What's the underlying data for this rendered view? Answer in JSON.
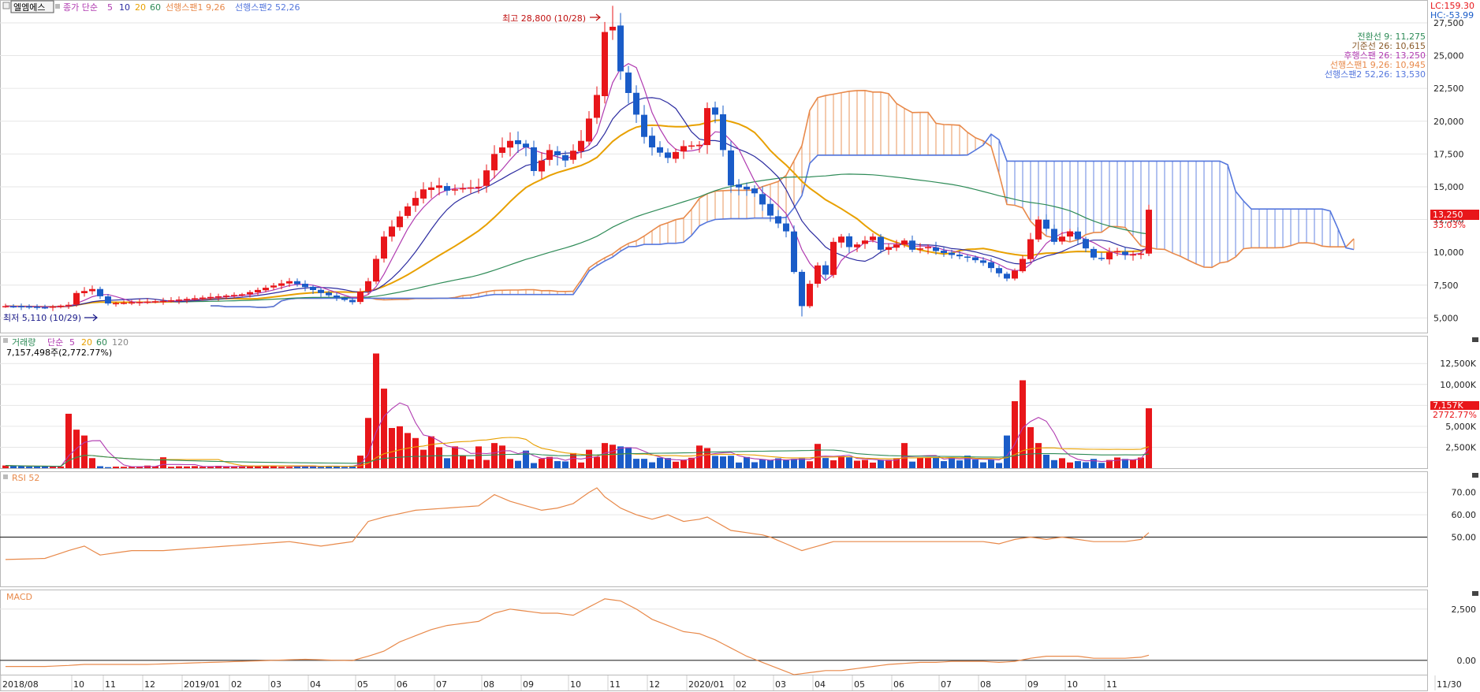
{
  "header": {
    "stock_name": "엘엠에스",
    "price_ma_label": "종가 단순",
    "price_ma_periods": [
      "5",
      "10",
      "20",
      "60"
    ],
    "span1_label": "선행스팬1 9,26",
    "span2_label": "선행스팬2 52,26",
    "lc_label": "LC:159.30",
    "hc_label": "HC:-53.99"
  },
  "ichimoku_legend": [
    "전환선 9: 11,275",
    "기준선 26: 10,615",
    "후행스팬 26: 13,250",
    "선행스팬1 9,26: 10,945",
    "선행스팬2 52,26: 13,530"
  ],
  "annotations": {
    "high": "최고 28,800 (10/28)",
    "low": "최저 5,110 (10/29)"
  },
  "badges": {
    "price_value": "13,250",
    "price_pct": "33.03%",
    "volume_value": "7,157K",
    "volume_pct": "2772.77%"
  },
  "volume_panel": {
    "title": "거래량",
    "ma_label": "단순",
    "ma_periods": [
      "5",
      "20",
      "60",
      "120"
    ],
    "current": "7,157,498주(2,772.77%)"
  },
  "rsi_panel": {
    "title": "RSI 52"
  },
  "macd_panel": {
    "title": "MACD"
  },
  "colors": {
    "up": "#e8161a",
    "down": "#1a5cc8",
    "ma5": "#b03ab0",
    "ma10": "#2c2ca0",
    "ma20": "#e8a000",
    "ma60": "#2e8b57",
    "span1": "#e8894a",
    "span2": "#5577dd",
    "indicator": "#e8894a"
  },
  "chart_data": [
    {
      "type": "candlestick",
      "name": "price",
      "ylim": [
        4000,
        29000
      ],
      "y_ticks": [
        "27,500",
        "25,000",
        "22,500",
        "20,000",
        "17,500",
        "15,000",
        "12,500",
        "10,000",
        "7,500",
        "5,000"
      ],
      "x_labels": [
        "2018/08",
        "10",
        "11",
        "12",
        "2019/01",
        "02",
        "03",
        "04",
        "05",
        "06",
        "07",
        "08",
        "09",
        "10",
        "11",
        "12",
        "2020/01",
        "02",
        "03",
        "04",
        "05",
        "06",
        "07",
        "08",
        "09",
        "10",
        "11",
        "11/30"
      ],
      "anchors": [
        [
          0,
          5900
        ],
        [
          5,
          5800
        ],
        [
          8,
          6000
        ],
        [
          9,
          6900
        ],
        [
          11,
          7200
        ],
        [
          13,
          6100
        ],
        [
          20,
          6300
        ],
        [
          30,
          6800
        ],
        [
          36,
          7800
        ],
        [
          40,
          6900
        ],
        [
          44,
          6200
        ],
        [
          46,
          7800
        ],
        [
          48,
          11200
        ],
        [
          51,
          13500
        ],
        [
          53,
          14800
        ],
        [
          55,
          15100
        ],
        [
          56,
          14700
        ],
        [
          58,
          14900
        ],
        [
          60,
          15000
        ],
        [
          62,
          17500
        ],
        [
          64,
          18500
        ],
        [
          66,
          18000
        ],
        [
          67,
          16200
        ],
        [
          69,
          17800
        ],
        [
          71,
          17000
        ],
        [
          73,
          18500
        ],
        [
          74,
          20200
        ],
        [
          75,
          22000
        ],
        [
          76,
          26800
        ],
        [
          77,
          27200
        ],
        [
          78,
          23800
        ],
        [
          80,
          20500
        ],
        [
          81,
          18800
        ],
        [
          82,
          18000
        ],
        [
          84,
          17200
        ],
        [
          86,
          18100
        ],
        [
          88,
          18200
        ],
        [
          89,
          21000
        ],
        [
          90,
          20500
        ],
        [
          91,
          17800
        ],
        [
          92,
          15100
        ],
        [
          94,
          14800
        ],
        [
          95,
          14500
        ],
        [
          97,
          12800
        ],
        [
          99,
          11600
        ],
        [
          100,
          8500
        ],
        [
          101,
          5900
        ],
        [
          102,
          7600
        ],
        [
          103,
          9000
        ],
        [
          104,
          8300
        ],
        [
          105,
          10800
        ],
        [
          106,
          11200
        ],
        [
          107,
          10400
        ],
        [
          108,
          10600
        ],
        [
          110,
          11200
        ],
        [
          111,
          10200
        ],
        [
          112,
          10400
        ],
        [
          113,
          10600
        ],
        [
          114,
          10900
        ],
        [
          115,
          10200
        ],
        [
          117,
          10400
        ],
        [
          118,
          10100
        ],
        [
          120,
          9800
        ],
        [
          122,
          9600
        ],
        [
          124,
          9200
        ],
        [
          125,
          8800
        ],
        [
          126,
          8400
        ],
        [
          127,
          8000
        ],
        [
          128,
          8600
        ],
        [
          129,
          9500
        ],
        [
          130,
          11000
        ],
        [
          131,
          12500
        ],
        [
          132,
          11800
        ],
        [
          133,
          10800
        ],
        [
          134,
          11200
        ],
        [
          135,
          11600
        ],
        [
          136,
          11000
        ],
        [
          137,
          10300
        ],
        [
          138,
          9600
        ],
        [
          139,
          9500
        ],
        [
          140,
          10000
        ],
        [
          141,
          10100
        ],
        [
          142,
          9800
        ],
        [
          144,
          9900
        ],
        [
          145,
          13250
        ]
      ],
      "high": "28,800 (10/28)",
      "low": "5,110 (10/29)"
    },
    {
      "type": "bar",
      "name": "volume",
      "ylim": [
        0,
        14500
      ],
      "unit": "K",
      "y_ticks": [
        "12,500K",
        "10,000K",
        "7,500K",
        "5,000K",
        "2,500K"
      ],
      "spikes": [
        [
          8,
          6500
        ],
        [
          9,
          4600
        ],
        [
          10,
          3900
        ],
        [
          11,
          1200
        ],
        [
          20,
          1300
        ],
        [
          45,
          1500
        ],
        [
          46,
          6000
        ],
        [
          47,
          13700
        ],
        [
          48,
          9500
        ],
        [
          49,
          4800
        ],
        [
          50,
          5000
        ],
        [
          51,
          4200
        ],
        [
          52,
          3600
        ],
        [
          53,
          2200
        ],
        [
          54,
          3800
        ],
        [
          55,
          2500
        ],
        [
          57,
          2600
        ],
        [
          60,
          2600
        ],
        [
          62,
          3000
        ],
        [
          63,
          2700
        ],
        [
          66,
          2100
        ],
        [
          72,
          1800
        ],
        [
          74,
          2200
        ],
        [
          76,
          3000
        ],
        [
          77,
          2800
        ],
        [
          78,
          2600
        ],
        [
          79,
          2500
        ],
        [
          88,
          2700
        ],
        [
          89,
          2400
        ],
        [
          103,
          2900
        ],
        [
          114,
          3000
        ],
        [
          127,
          3900
        ],
        [
          128,
          8000
        ],
        [
          129,
          10500
        ],
        [
          130,
          4900
        ],
        [
          131,
          3000
        ],
        [
          132,
          1600
        ],
        [
          145,
          7157
        ]
      ]
    },
    {
      "type": "line",
      "name": "RSI 52",
      "ylim": [
        28,
        78
      ],
      "y_ticks": [
        "70.00",
        "60.00",
        "50.00"
      ],
      "reference": 50,
      "anchors": [
        [
          0,
          40
        ],
        [
          5,
          40.5
        ],
        [
          8,
          44
        ],
        [
          10,
          46
        ],
        [
          12,
          42
        ],
        [
          16,
          44
        ],
        [
          20,
          44
        ],
        [
          24,
          45
        ],
        [
          28,
          46
        ],
        [
          32,
          47
        ],
        [
          36,
          48
        ],
        [
          40,
          46
        ],
        [
          44,
          48
        ],
        [
          46,
          57
        ],
        [
          48,
          59
        ],
        [
          52,
          62
        ],
        [
          56,
          63
        ],
        [
          60,
          64
        ],
        [
          62,
          69
        ],
        [
          64,
          66
        ],
        [
          66,
          64
        ],
        [
          68,
          62
        ],
        [
          70,
          63
        ],
        [
          72,
          65
        ],
        [
          74,
          70
        ],
        [
          75,
          72
        ],
        [
          76,
          68
        ],
        [
          78,
          63
        ],
        [
          80,
          60
        ],
        [
          82,
          58
        ],
        [
          84,
          60
        ],
        [
          86,
          57
        ],
        [
          88,
          58
        ],
        [
          89,
          59
        ],
        [
          90,
          57
        ],
        [
          92,
          53
        ],
        [
          94,
          52
        ],
        [
          96,
          51
        ],
        [
          97,
          50
        ],
        [
          99,
          47
        ],
        [
          101,
          44
        ],
        [
          103,
          46
        ],
        [
          105,
          48
        ],
        [
          108,
          48
        ],
        [
          112,
          48
        ],
        [
          116,
          48
        ],
        [
          120,
          48
        ],
        [
          124,
          48
        ],
        [
          126,
          47
        ],
        [
          128,
          49
        ],
        [
          130,
          50
        ],
        [
          132,
          49
        ],
        [
          134,
          50
        ],
        [
          136,
          49
        ],
        [
          138,
          48
        ],
        [
          140,
          48
        ],
        [
          142,
          48
        ],
        [
          144,
          49
        ],
        [
          145,
          52
        ]
      ]
    },
    {
      "type": "line",
      "name": "MACD",
      "ylim": [
        -700,
        3300
      ],
      "y_ticks": [
        "2,500",
        "0.00"
      ],
      "reference": 0,
      "anchors": [
        [
          0,
          -300
        ],
        [
          5,
          -300
        ],
        [
          8,
          -250
        ],
        [
          10,
          -200
        ],
        [
          14,
          -200
        ],
        [
          18,
          -200
        ],
        [
          22,
          -150
        ],
        [
          26,
          -100
        ],
        [
          30,
          -50
        ],
        [
          34,
          0
        ],
        [
          38,
          50
        ],
        [
          42,
          0
        ],
        [
          44,
          -10
        ],
        [
          46,
          200
        ],
        [
          48,
          450
        ],
        [
          50,
          900
        ],
        [
          52,
          1200
        ],
        [
          54,
          1500
        ],
        [
          56,
          1700
        ],
        [
          58,
          1800
        ],
        [
          60,
          1900
        ],
        [
          62,
          2300
        ],
        [
          64,
          2500
        ],
        [
          66,
          2400
        ],
        [
          68,
          2300
        ],
        [
          70,
          2300
        ],
        [
          72,
          2200
        ],
        [
          74,
          2600
        ],
        [
          76,
          3000
        ],
        [
          78,
          2900
        ],
        [
          80,
          2500
        ],
        [
          82,
          2000
        ],
        [
          84,
          1700
        ],
        [
          86,
          1400
        ],
        [
          88,
          1300
        ],
        [
          90,
          1000
        ],
        [
          92,
          600
        ],
        [
          94,
          200
        ],
        [
          96,
          -100
        ],
        [
          98,
          -400
        ],
        [
          100,
          -700
        ],
        [
          102,
          -600
        ],
        [
          104,
          -500
        ],
        [
          106,
          -500
        ],
        [
          108,
          -400
        ],
        [
          110,
          -300
        ],
        [
          112,
          -200
        ],
        [
          114,
          -150
        ],
        [
          116,
          -100
        ],
        [
          118,
          -100
        ],
        [
          120,
          -50
        ],
        [
          122,
          -50
        ],
        [
          124,
          -50
        ],
        [
          126,
          -100
        ],
        [
          128,
          -50
        ],
        [
          130,
          100
        ],
        [
          132,
          200
        ],
        [
          134,
          200
        ],
        [
          136,
          200
        ],
        [
          138,
          100
        ],
        [
          140,
          100
        ],
        [
          142,
          100
        ],
        [
          144,
          150
        ],
        [
          145,
          250
        ]
      ]
    }
  ]
}
